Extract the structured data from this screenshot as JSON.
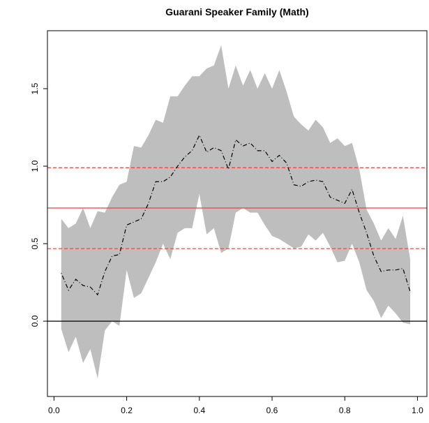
{
  "chart_data": {
    "type": "line",
    "title": "Guarani Speaker Family (Math)",
    "x": [
      0.02,
      0.04,
      0.06,
      0.08,
      0.1,
      0.12,
      0.14,
      0.16,
      0.18,
      0.2,
      0.22,
      0.24,
      0.26,
      0.28,
      0.3,
      0.32,
      0.34,
      0.36,
      0.38,
      0.4,
      0.42,
      0.44,
      0.46,
      0.48,
      0.5,
      0.52,
      0.54,
      0.56,
      0.58,
      0.6,
      0.62,
      0.64,
      0.66,
      0.68,
      0.7,
      0.72,
      0.74,
      0.76,
      0.78,
      0.8,
      0.82,
      0.84,
      0.86,
      0.88,
      0.9,
      0.92,
      0.94,
      0.96,
      0.98
    ],
    "line": {
      "color": "#000000",
      "values": [
        0.31,
        0.2,
        0.27,
        0.23,
        0.22,
        0.17,
        0.32,
        0.42,
        0.43,
        0.62,
        0.64,
        0.66,
        0.76,
        0.9,
        0.9,
        0.93,
        1.0,
        1.06,
        1.1,
        1.2,
        1.09,
        1.12,
        1.1,
        0.98,
        1.17,
        1.13,
        1.15,
        1.1,
        1.1,
        1.03,
        1.07,
        1.02,
        0.88,
        0.87,
        0.9,
        0.91,
        0.9,
        0.8,
        0.78,
        0.76,
        0.85,
        0.7,
        0.57,
        0.42,
        0.32,
        0.33,
        0.33,
        0.34,
        0.19
      ]
    },
    "band": {
      "color": "#bebebe",
      "upper": [
        0.66,
        0.6,
        0.63,
        0.73,
        0.6,
        0.71,
        0.7,
        0.8,
        0.88,
        0.9,
        1.13,
        1.12,
        1.2,
        1.3,
        1.28,
        1.45,
        1.45,
        1.52,
        1.58,
        1.58,
        1.63,
        1.65,
        1.78,
        1.5,
        1.65,
        1.52,
        1.62,
        1.5,
        1.6,
        1.5,
        1.62,
        1.48,
        1.32,
        1.27,
        1.23,
        1.3,
        1.25,
        1.15,
        1.18,
        1.13,
        1.15,
        0.98,
        0.72,
        0.63,
        0.52,
        0.6,
        0.53,
        0.68,
        0.4
      ],
      "lower": [
        -0.05,
        -0.2,
        -0.1,
        -0.27,
        -0.18,
        -0.37,
        -0.06,
        0.0,
        -0.03,
        0.33,
        0.15,
        0.18,
        0.28,
        0.38,
        0.5,
        0.4,
        0.57,
        0.6,
        0.6,
        0.82,
        0.56,
        0.6,
        0.44,
        0.47,
        0.7,
        0.73,
        0.7,
        0.7,
        0.62,
        0.55,
        0.53,
        0.5,
        0.47,
        0.48,
        0.56,
        0.52,
        0.57,
        0.48,
        0.38,
        0.39,
        0.5,
        0.38,
        0.2,
        0.13,
        0.02,
        0.1,
        0.05,
        -0.01,
        -0.02
      ]
    },
    "hlines": [
      {
        "value": 0,
        "color": "#000000",
        "dash": false
      },
      {
        "value": 0.73,
        "color": "#e8413c",
        "dash": false
      },
      {
        "value": 0.99,
        "color": "#e8413c",
        "dash": true
      },
      {
        "value": 0.468,
        "color": "#e8413c",
        "dash": true
      }
    ],
    "xlim": [
      -0.018,
      1.026
    ],
    "ylim": [
      -0.486,
      1.874
    ],
    "xticks": [
      {
        "value": 0,
        "label": "0.0"
      },
      0.2,
      0.4,
      0.6,
      0.8,
      {
        "value": 1,
        "label": "1.0"
      }
    ],
    "yticks": [
      {
        "value": 0,
        "label": "0.0"
      },
      0.5,
      {
        "value": 1,
        "label": "1.0"
      },
      1.5
    ]
  }
}
